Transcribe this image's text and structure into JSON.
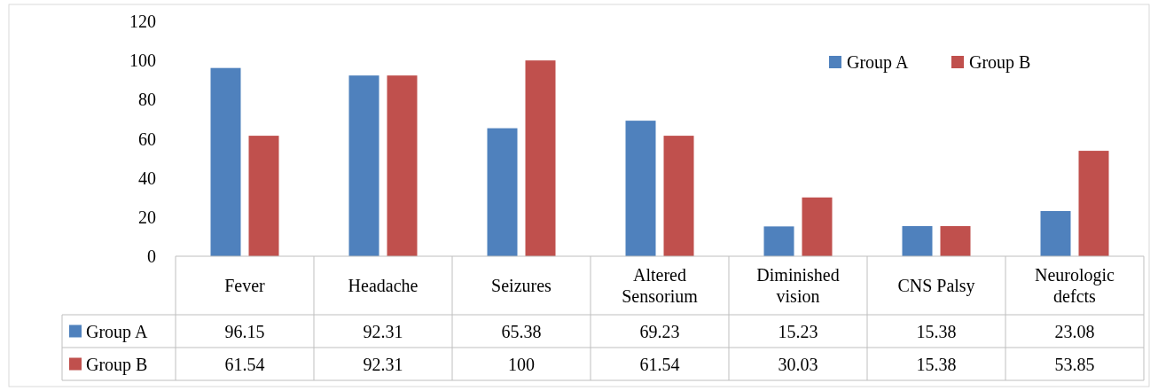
{
  "chart_data": {
    "type": "bar",
    "categories": [
      "Fever",
      "Headache",
      "Seizures",
      "Altered Sensorium",
      "Diminished vision",
      "CNS Palsy",
      "Neurologic defcts"
    ],
    "series": [
      {
        "name": "Group A",
        "color": "#4f81bd",
        "values": [
          96.15,
          92.31,
          65.38,
          69.23,
          15.23,
          15.38,
          23.08
        ]
      },
      {
        "name": "Group B",
        "color": "#c0504d",
        "values": [
          61.54,
          92.31,
          100,
          61.54,
          30.03,
          15.38,
          53.85
        ]
      }
    ],
    "ylim": [
      0,
      120
    ],
    "yticks": [
      0,
      20,
      40,
      60,
      80,
      100,
      120
    ],
    "grid": false,
    "legend": "top right",
    "data_labels": true
  }
}
